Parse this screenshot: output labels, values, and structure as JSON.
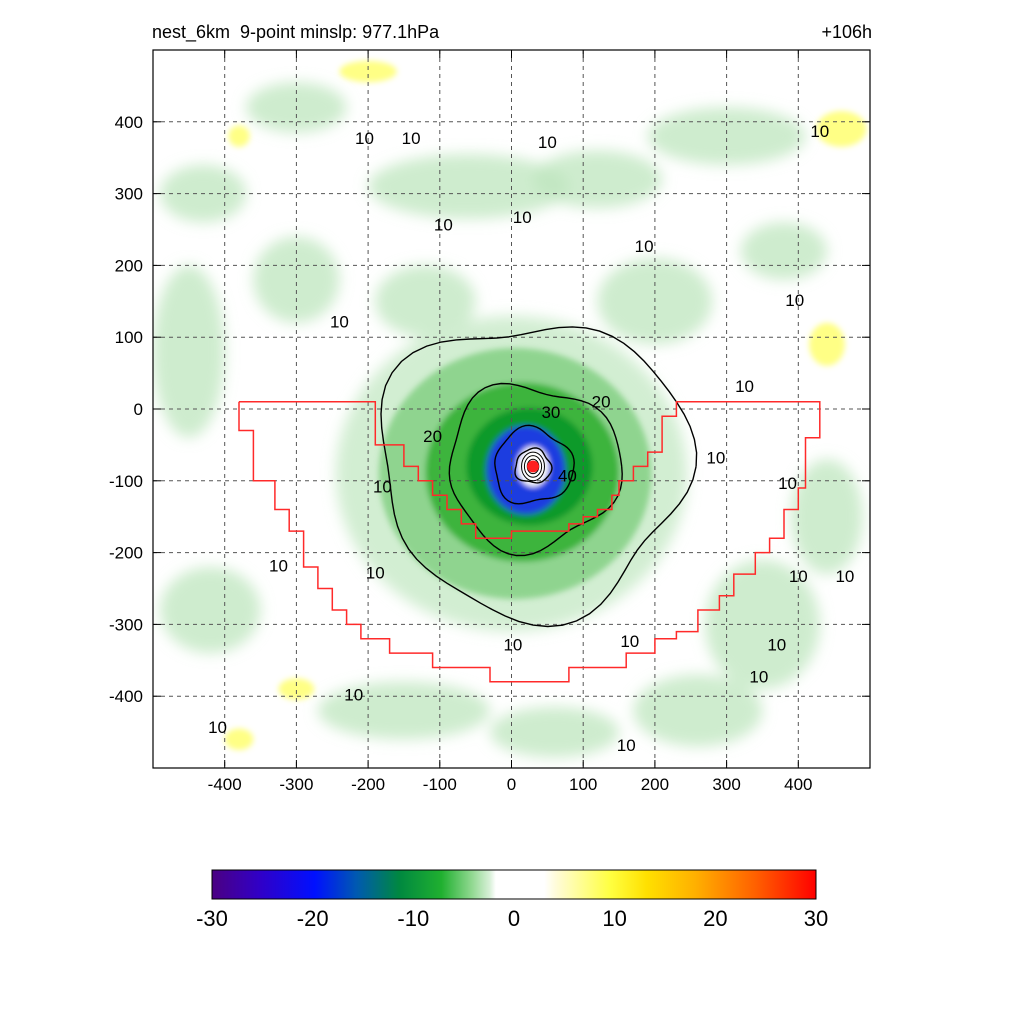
{
  "header": {
    "left_title": "nest_6km  9-point minslp: 977.1hPa",
    "right_title": "+106h"
  },
  "colors": {
    "boundary": "#ff2a2a",
    "contour": "#000000",
    "center_marker": "#ff2020"
  },
  "chart_data": {
    "type": "heatmap",
    "title": "nest_6km  9-point minslp: 977.1hPa",
    "forecast_hour": "+106h",
    "xlim": [
      -500,
      500
    ],
    "ylim": [
      -500,
      500
    ],
    "x_ticks": [
      -400,
      -300,
      -200,
      -100,
      0,
      100,
      200,
      300,
      400
    ],
    "y_ticks": [
      400,
      300,
      200,
      100,
      0,
      -100,
      -200,
      -300,
      -400
    ],
    "grid": true,
    "colorbar": {
      "min": -30,
      "max": 30,
      "ticks": [
        -30,
        -20,
        -10,
        0,
        10,
        20,
        30
      ]
    },
    "storm_center": [
      30,
      -80
    ],
    "contour_rings": [
      {
        "level": 40,
        "r": 25
      },
      {
        "level": 30,
        "r": 55
      },
      {
        "level": 20,
        "r": 120
      },
      {
        "level": 10,
        "r": 215
      }
    ],
    "contour_labels": [
      {
        "text": "30",
        "x": 55,
        "y": -6
      },
      {
        "text": "20",
        "x": 125,
        "y": 8
      },
      {
        "text": "20",
        "x": -110,
        "y": -40
      },
      {
        "text": "40",
        "x": 78,
        "y": -95
      },
      {
        "text": "10",
        "x": -180,
        "y": -110
      },
      {
        "text": "10",
        "x": -190,
        "y": -230
      },
      {
        "text": "10",
        "x": -240,
        "y": 120
      },
      {
        "text": "10",
        "x": -95,
        "y": 255
      },
      {
        "text": "10",
        "x": -140,
        "y": 375
      },
      {
        "text": "10",
        "x": -205,
        "y": 375
      },
      {
        "text": "10",
        "x": 50,
        "y": 370
      },
      {
        "text": "10",
        "x": 15,
        "y": 265
      },
      {
        "text": "10",
        "x": 185,
        "y": 225
      },
      {
        "text": "10",
        "x": 430,
        "y": 385
      },
      {
        "text": "10",
        "x": 395,
        "y": 150
      },
      {
        "text": "10",
        "x": 325,
        "y": 30
      },
      {
        "text": "10",
        "x": 285,
        "y": -70
      },
      {
        "text": "10",
        "x": 385,
        "y": -105
      },
      {
        "text": "10",
        "x": 400,
        "y": -235
      },
      {
        "text": "10",
        "x": 465,
        "y": -235
      },
      {
        "text": "10",
        "x": 370,
        "y": -330
      },
      {
        "text": "10",
        "x": 345,
        "y": -375
      },
      {
        "text": "10",
        "x": 2,
        "y": -330
      },
      {
        "text": "10",
        "x": 165,
        "y": -325
      },
      {
        "text": "10",
        "x": -220,
        "y": -400
      },
      {
        "text": "10",
        "x": -410,
        "y": -445
      },
      {
        "text": "10",
        "x": -325,
        "y": -220
      },
      {
        "text": "10",
        "x": 160,
        "y": -470
      }
    ],
    "red_boundary": [
      [
        -380,
        10
      ],
      [
        -190,
        10
      ],
      [
        -190,
        -50
      ],
      [
        -150,
        -50
      ],
      [
        -150,
        -80
      ],
      [
        -130,
        -80
      ],
      [
        -130,
        -100
      ],
      [
        -110,
        -100
      ],
      [
        -110,
        -120
      ],
      [
        -90,
        -120
      ],
      [
        -90,
        -140
      ],
      [
        -70,
        -140
      ],
      [
        -70,
        -160
      ],
      [
        -50,
        -160
      ],
      [
        -50,
        -180
      ],
      [
        0,
        -180
      ],
      [
        0,
        -170
      ],
      [
        80,
        -170
      ],
      [
        80,
        -160
      ],
      [
        100,
        -160
      ],
      [
        100,
        -150
      ],
      [
        120,
        -150
      ],
      [
        120,
        -140
      ],
      [
        140,
        -140
      ],
      [
        140,
        -120
      ],
      [
        150,
        -120
      ],
      [
        150,
        -100
      ],
      [
        170,
        -100
      ],
      [
        170,
        -80
      ],
      [
        190,
        -80
      ],
      [
        190,
        -60
      ],
      [
        210,
        -60
      ],
      [
        210,
        -10
      ],
      [
        230,
        -10
      ],
      [
        230,
        10
      ],
      [
        430,
        10
      ],
      [
        430,
        -40
      ],
      [
        410,
        -40
      ],
      [
        410,
        -110
      ],
      [
        400,
        -110
      ],
      [
        400,
        -140
      ],
      [
        380,
        -140
      ],
      [
        380,
        -180
      ],
      [
        360,
        -180
      ],
      [
        360,
        -200
      ],
      [
        340,
        -200
      ],
      [
        340,
        -230
      ],
      [
        310,
        -230
      ],
      [
        310,
        -260
      ],
      [
        290,
        -260
      ],
      [
        290,
        -280
      ],
      [
        260,
        -280
      ],
      [
        260,
        -310
      ],
      [
        230,
        -310
      ],
      [
        230,
        -320
      ],
      [
        200,
        -320
      ],
      [
        200,
        -340
      ],
      [
        160,
        -340
      ],
      [
        160,
        -360
      ],
      [
        80,
        -360
      ],
      [
        80,
        -380
      ],
      [
        -30,
        -380
      ],
      [
        -30,
        -360
      ],
      [
        -110,
        -360
      ],
      [
        -110,
        -340
      ],
      [
        -170,
        -340
      ],
      [
        -170,
        -320
      ],
      [
        -210,
        -320
      ],
      [
        -210,
        -300
      ],
      [
        -230,
        -300
      ],
      [
        -230,
        -280
      ],
      [
        -250,
        -280
      ],
      [
        -250,
        -250
      ],
      [
        -270,
        -250
      ],
      [
        -270,
        -220
      ],
      [
        -290,
        -220
      ],
      [
        -290,
        -170
      ],
      [
        -310,
        -170
      ],
      [
        -310,
        -140
      ],
      [
        -330,
        -140
      ],
      [
        -330,
        -100
      ],
      [
        -360,
        -100
      ],
      [
        -360,
        -30
      ],
      [
        -380,
        -30
      ],
      [
        -380,
        10
      ]
    ]
  }
}
